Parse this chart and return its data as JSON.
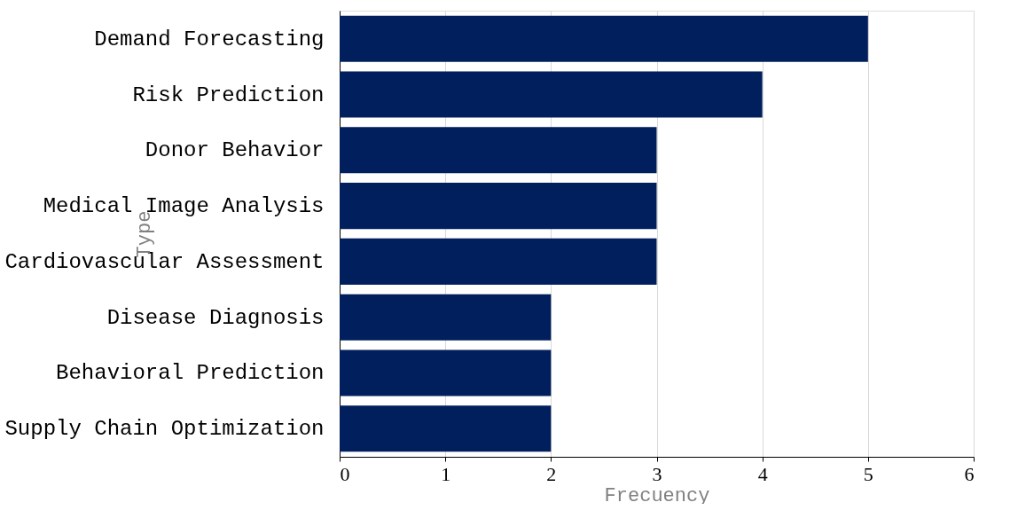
{
  "chart_data": {
    "type": "bar",
    "orientation": "horizontal",
    "xlabel": "Frecuency",
    "ylabel": "Type",
    "categories": [
      "Demand Forecasting",
      "Risk Prediction",
      "Donor Behavior",
      "Medical Image Analysis",
      "Cardiovascular Assessment",
      "Disease Diagnosis",
      "Behavioral Prediction",
      "Supply Chain Optimization"
    ],
    "values": [
      5,
      4,
      3,
      3,
      3,
      2,
      2,
      2
    ],
    "color": "#001f5c",
    "xlim": [
      0,
      6
    ],
    "xticks": [
      0,
      1,
      2,
      3,
      4,
      5,
      6
    ],
    "grid": "x"
  }
}
